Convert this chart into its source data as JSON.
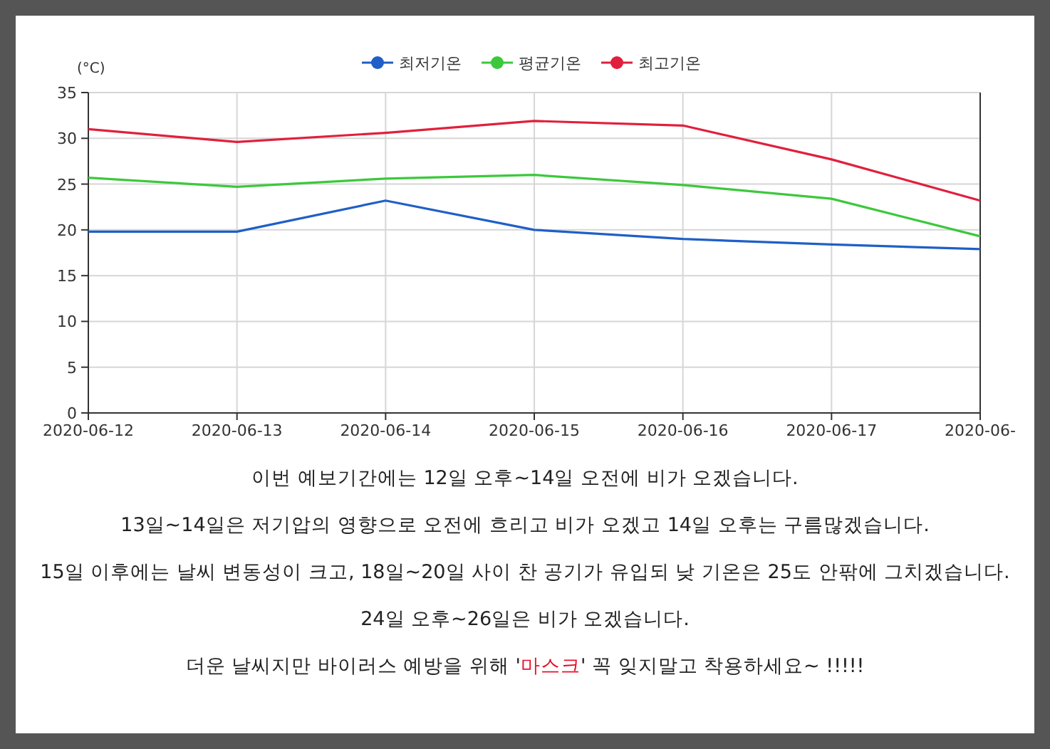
{
  "chart_data": {
    "type": "line",
    "ylabel": "(°C)",
    "categories": [
      "2020-06-12",
      "2020-06-13",
      "2020-06-14",
      "2020-06-15",
      "2020-06-16",
      "2020-06-17",
      "2020-06-"
    ],
    "series": [
      {
        "name": "최저기온",
        "color": "#1f5fc7",
        "values": [
          19.8,
          19.8,
          23.2,
          20,
          19,
          18.4,
          17.9
        ]
      },
      {
        "name": "평균기온",
        "color": "#3cc83c",
        "values": [
          25.7,
          24.7,
          25.6,
          26,
          24.9,
          23.4,
          19.3
        ]
      },
      {
        "name": "최고기온",
        "color": "#e0203c",
        "values": [
          31,
          29.6,
          30.6,
          31.9,
          31.4,
          27.7,
          23.2
        ]
      }
    ],
    "ylim": [
      0,
      35
    ],
    "yticks": [
      0,
      5,
      10,
      15,
      20,
      25,
      30,
      35
    ],
    "grid": true,
    "legend": "top",
    "marker": "none",
    "line_style": "solid",
    "annotations": [
      "이번 예보기간에는 12일 오후~14일 오전에 비가 오겠습니다.",
      "13일~14일은 저기압의 영향으로 오전에 흐리고 비가 오겠고 14일 오후는 구름많겠습니다.",
      "15일 이후에는 날씨 변동성이 크고, 18일~20일 사이 찬 공기가 유입되 낮 기온은 25도 안팎에 그치겠습니다.",
      "24일 오후~26일은 비가 오겠습니다.",
      "더운 날씨지만 바이러스 예방을 위해 '마스크' 꼭 잊지말고 착용하세요~ !!!!!"
    ]
  }
}
